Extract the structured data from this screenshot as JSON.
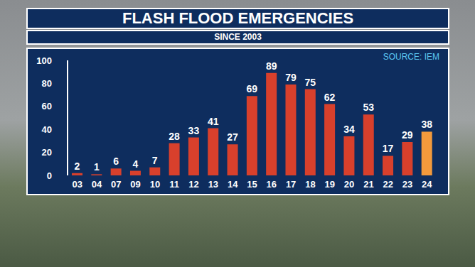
{
  "chart_data": {
    "type": "bar",
    "title": "FLASH FLOOD EMERGENCIES",
    "subtitle": "SINCE 2003",
    "annotations": [
      "SOURCE: IEM"
    ],
    "categories": [
      "03",
      "04",
      "07",
      "09",
      "10",
      "11",
      "12",
      "13",
      "14",
      "15",
      "16",
      "17",
      "18",
      "19",
      "20",
      "21",
      "22",
      "23",
      "24"
    ],
    "values": [
      2,
      1,
      6,
      4,
      7,
      28,
      33,
      41,
      27,
      69,
      89,
      79,
      75,
      62,
      34,
      53,
      17,
      29,
      38
    ],
    "colors": [
      "#d8402c",
      "#d8402c",
      "#d8402c",
      "#d8402c",
      "#d8402c",
      "#d8402c",
      "#d8402c",
      "#d8402c",
      "#d8402c",
      "#d8402c",
      "#d8402c",
      "#d8402c",
      "#d8402c",
      "#d8402c",
      "#d8402c",
      "#d8402c",
      "#d8402c",
      "#d8402c",
      "#f39a3c"
    ],
    "ylim": [
      0,
      100
    ],
    "yticks": [
      0,
      20,
      40,
      60,
      80,
      100
    ],
    "grid": false,
    "data_labels": true
  }
}
